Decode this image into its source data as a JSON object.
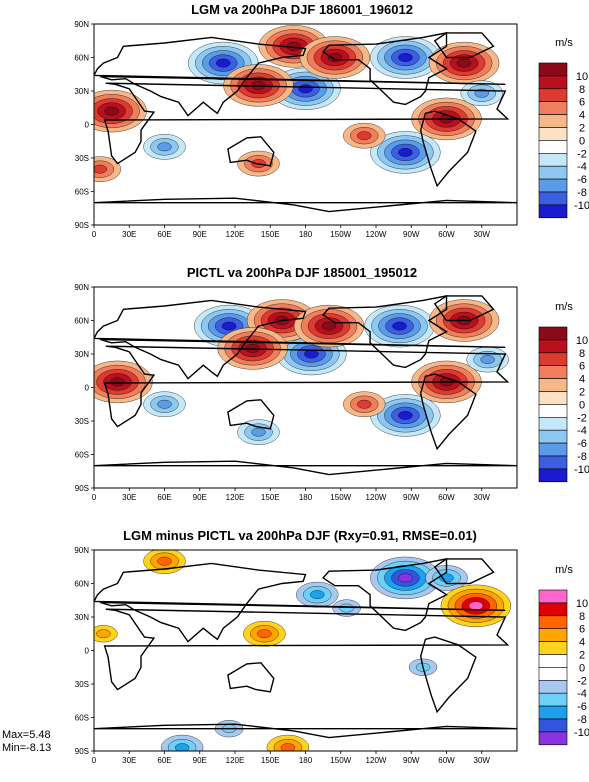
{
  "chart_data": [
    {
      "type": "heatmap",
      "title": "LGM va 200hPa DJF 186001_196012",
      "unit": "m/s",
      "x_ticks": [
        "0",
        "30E",
        "60E",
        "90E",
        "120E",
        "150E",
        "180",
        "150W",
        "120W",
        "90W",
        "60W",
        "30W"
      ],
      "y_ticks": [
        "90N",
        "60N",
        "30N",
        "0",
        "30S",
        "60S",
        "90S"
      ],
      "colorbar_labels": [
        "10",
        "8",
        "6",
        "4",
        "2",
        "0",
        "-2",
        "-4",
        "-6",
        "-8",
        "-10"
      ],
      "palette": "blue-white-red",
      "colors": [
        "#1a1ad0",
        "#3b5fe0",
        "#5c9be8",
        "#8ec8f0",
        "#c5e8f8",
        "#ffffff",
        "#fde1c4",
        "#f7b889",
        "#ef7e5d",
        "#dc3b30",
        "#b8101e",
        "#8a0a1a"
      ],
      "cells": [
        {
          "lon": 110,
          "lat": 55,
          "v": -9
        },
        {
          "lon": 180,
          "lat": 32,
          "v": -7
        },
        {
          "lon": 265,
          "lat": 60,
          "v": -11
        },
        {
          "lon": 15,
          "lat": 12,
          "v": 8
        },
        {
          "lon": 170,
          "lat": 70,
          "v": 6
        },
        {
          "lon": 140,
          "lat": 35,
          "v": 5
        },
        {
          "lon": 315,
          "lat": 55,
          "v": 9
        },
        {
          "lon": 300,
          "lat": 5,
          "v": 6
        },
        {
          "lon": 265,
          "lat": -25,
          "v": -7
        },
        {
          "lon": 205,
          "lat": 60,
          "v": 7
        },
        {
          "lon": 330,
          "lat": 28,
          "v": -3
        },
        {
          "lon": 60,
          "lat": -20,
          "v": -3
        },
        {
          "lon": 140,
          "lat": -35,
          "v": 3
        },
        {
          "lon": 5,
          "lat": -40,
          "v": 3
        },
        {
          "lon": 230,
          "lat": -10,
          "v": 3
        }
      ]
    },
    {
      "type": "heatmap",
      "title": "PICTL va 200hPa DJF 185001_195012",
      "unit": "m/s",
      "x_ticks": [
        "0",
        "30E",
        "60E",
        "90E",
        "120E",
        "150E",
        "180",
        "150W",
        "120W",
        "90W",
        "60W",
        "30W"
      ],
      "y_ticks": [
        "90N",
        "60N",
        "30N",
        "0",
        "30S",
        "60S",
        "90S"
      ],
      "colorbar_labels": [
        "10",
        "8",
        "6",
        "4",
        "2",
        "0",
        "-2",
        "-4",
        "-6",
        "-8",
        "-10"
      ],
      "palette": "blue-white-red",
      "colors": [
        "#1a1ad0",
        "#3b5fe0",
        "#5c9be8",
        "#8ec8f0",
        "#c5e8f8",
        "#ffffff",
        "#fde1c4",
        "#f7b889",
        "#ef7e5d",
        "#dc3b30",
        "#b8101e",
        "#8a0a1a"
      ],
      "cells": [
        {
          "lon": 115,
          "lat": 55,
          "v": -9
        },
        {
          "lon": 185,
          "lat": 30,
          "v": -7
        },
        {
          "lon": 260,
          "lat": 55,
          "v": -8
        },
        {
          "lon": 20,
          "lat": 5,
          "v": 7
        },
        {
          "lon": 160,
          "lat": 60,
          "v": 6
        },
        {
          "lon": 135,
          "lat": 35,
          "v": 5
        },
        {
          "lon": 315,
          "lat": 60,
          "v": 8
        },
        {
          "lon": 300,
          "lat": 5,
          "v": 6
        },
        {
          "lon": 265,
          "lat": -25,
          "v": -7
        },
        {
          "lon": 200,
          "lat": 55,
          "v": 6
        },
        {
          "lon": 335,
          "lat": 25,
          "v": -3
        },
        {
          "lon": 60,
          "lat": -15,
          "v": -3
        },
        {
          "lon": 140,
          "lat": -40,
          "v": -3
        },
        {
          "lon": 230,
          "lat": -15,
          "v": 3
        }
      ]
    },
    {
      "type": "heatmap",
      "title": "LGM minus PICTL va 200hPa DJF (Rxy=0.91, RMSE=0.01)",
      "unit": "m/s",
      "x_ticks": [
        "0",
        "30E",
        "60E",
        "90E",
        "120E",
        "150E",
        "180",
        "150W",
        "120W",
        "90W",
        "60W",
        "30W"
      ],
      "y_ticks": [
        "90N",
        "60N",
        "30N",
        "0",
        "30S",
        "60S",
        "90S"
      ],
      "colorbar_labels": [
        "10",
        "8",
        "6",
        "4",
        "2",
        "0",
        "-2",
        "-4",
        "-6",
        "-8",
        "-10"
      ],
      "palette": "difference",
      "colors": [
        "#8a33e0",
        "#3355dd",
        "#1ea0f0",
        "#6fd0f5",
        "#a8c8f0",
        "#ffffff",
        "#ffffff",
        "#ffd21e",
        "#ffa500",
        "#ff6400",
        "#e00000",
        "#ff66cc"
      ],
      "cells": [
        {
          "lon": 60,
          "lat": 80,
          "v": 3
        },
        {
          "lon": 265,
          "lat": 65,
          "v": -7
        },
        {
          "lon": 300,
          "lat": 65,
          "v": -3
        },
        {
          "lon": 325,
          "lat": 40,
          "v": 5
        },
        {
          "lon": 190,
          "lat": 50,
          "v": -3
        },
        {
          "lon": 145,
          "lat": 15,
          "v": 3
        },
        {
          "lon": 8,
          "lat": 15,
          "v": 2
        },
        {
          "lon": 280,
          "lat": -15,
          "v": -2
        },
        {
          "lon": 115,
          "lat": -70,
          "v": -2
        },
        {
          "lon": 75,
          "lat": -87,
          "v": -3
        },
        {
          "lon": 165,
          "lat": -87,
          "v": 3
        },
        {
          "lon": 215,
          "lat": 38,
          "v": -2
        }
      ],
      "stats": {
        "max": "Max=5.48",
        "min": "Min=-8.13"
      }
    }
  ]
}
